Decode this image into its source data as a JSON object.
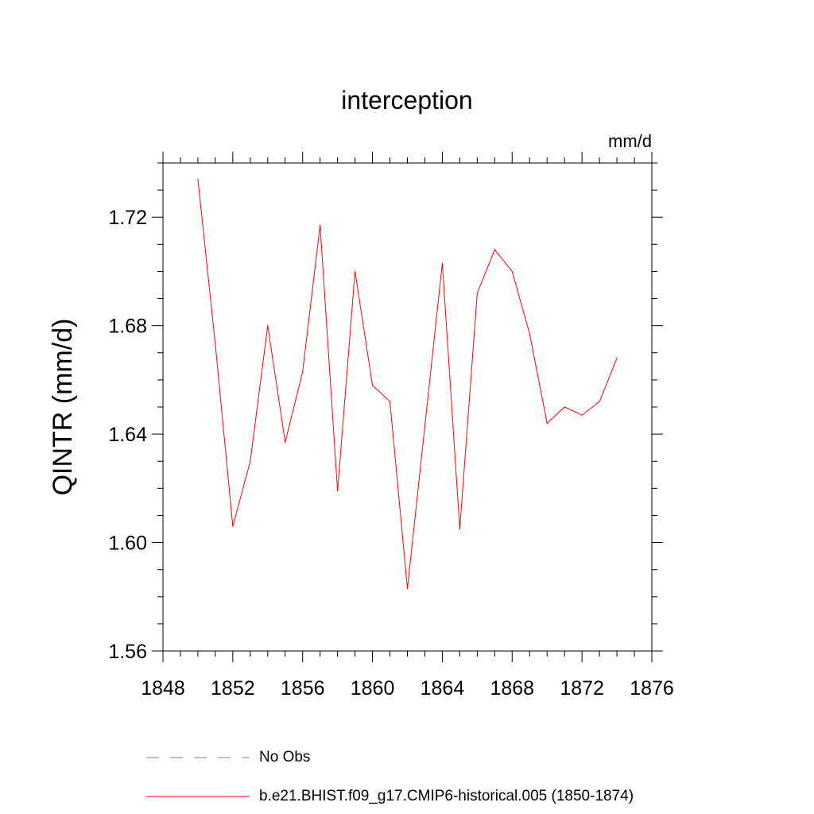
{
  "chart_data": {
    "type": "line",
    "title": "interception",
    "units_label": "mm/d",
    "ylabel": "QINTR  (mm/d)",
    "xlabel": "",
    "xlim": [
      1848,
      1876
    ],
    "ylim": [
      1.56,
      1.74
    ],
    "x_ticks": [
      1848,
      1852,
      1856,
      1860,
      1864,
      1868,
      1872,
      1876
    ],
    "y_ticks": [
      "1.56",
      "1.60",
      "1.64",
      "1.68",
      "1.72"
    ],
    "series": [
      {
        "name": "b.e21.BHIST.f09_g17.CMIP6-historical.005 (1850-1874)",
        "color": "#ff0000",
        "style": "solid",
        "x": [
          1850,
          1851,
          1852,
          1853,
          1854,
          1855,
          1856,
          1857,
          1858,
          1859,
          1860,
          1861,
          1862,
          1863,
          1864,
          1865,
          1866,
          1867,
          1868,
          1869,
          1870,
          1871,
          1872,
          1873,
          1874
        ],
        "values": [
          1.734,
          1.673,
          1.606,
          1.63,
          1.68,
          1.637,
          1.663,
          1.717,
          1.619,
          1.7,
          1.658,
          1.652,
          1.583,
          1.643,
          1.703,
          1.605,
          1.692,
          1.708,
          1.7,
          1.677,
          1.644,
          1.65,
          1.647,
          1.652,
          1.668
        ]
      }
    ],
    "legend": [
      {
        "label": "No Obs",
        "color": "#7777cc",
        "style": "dashed"
      },
      {
        "label": "b.e21.BHIST.f09_g17.CMIP6-historical.005 (1850-1874)",
        "color": "#ff0000",
        "style": "solid"
      }
    ]
  }
}
